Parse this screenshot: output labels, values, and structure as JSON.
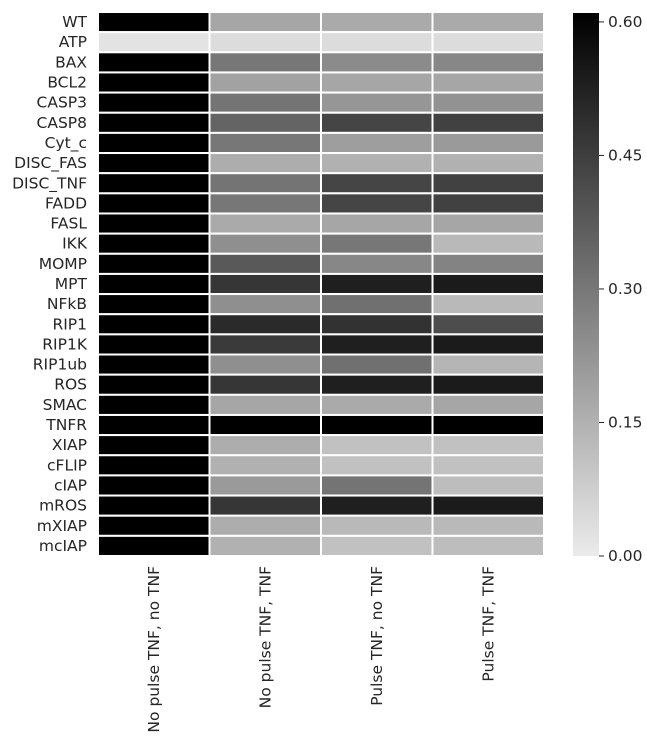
{
  "chart_data": {
    "type": "heatmap",
    "title": "",
    "xlabel": "",
    "ylabel": "",
    "columns": [
      "No pulse TNF, no TNF",
      "No pulse TNF, TNF",
      "Pulse TNF, no TNF",
      "Pulse TNF, TNF"
    ],
    "rows": [
      "WT",
      "ATP",
      "BAX",
      "BCL2",
      "CASP3",
      "CASP8",
      "Cyt_c",
      "DISC_FAS",
      "DISC_TNF",
      "FADD",
      "FASL",
      "IKK",
      "MOMP",
      "MPT",
      "NFkB",
      "RIP1",
      "RIP1K",
      "RIP1ub",
      "ROS",
      "SMAC",
      "TNFR",
      "XIAP",
      "cFLIP",
      "cIAP",
      "mROS",
      "mXIAP",
      "mcIAP"
    ],
    "values": [
      [
        0.61,
        0.18,
        0.17,
        0.17
      ],
      [
        0.02,
        0.04,
        0.04,
        0.04
      ],
      [
        0.61,
        0.3,
        0.25,
        0.26
      ],
      [
        0.61,
        0.19,
        0.18,
        0.18
      ],
      [
        0.61,
        0.31,
        0.22,
        0.23
      ],
      [
        0.61,
        0.35,
        0.43,
        0.44
      ],
      [
        0.61,
        0.3,
        0.2,
        0.21
      ],
      [
        0.61,
        0.16,
        0.15,
        0.15
      ],
      [
        0.61,
        0.31,
        0.43,
        0.44
      ],
      [
        0.61,
        0.3,
        0.43,
        0.44
      ],
      [
        0.61,
        0.17,
        0.18,
        0.18
      ],
      [
        0.61,
        0.24,
        0.3,
        0.13
      ],
      [
        0.61,
        0.38,
        0.26,
        0.27
      ],
      [
        0.61,
        0.47,
        0.53,
        0.54
      ],
      [
        0.61,
        0.24,
        0.32,
        0.13
      ],
      [
        0.61,
        0.5,
        0.48,
        0.41
      ],
      [
        0.61,
        0.46,
        0.53,
        0.54
      ],
      [
        0.61,
        0.24,
        0.32,
        0.14
      ],
      [
        0.61,
        0.47,
        0.53,
        0.54
      ],
      [
        0.61,
        0.18,
        0.17,
        0.18
      ],
      [
        0.61,
        0.61,
        0.61,
        0.61
      ],
      [
        0.61,
        0.16,
        0.11,
        0.11
      ],
      [
        0.61,
        0.15,
        0.11,
        0.11
      ],
      [
        0.61,
        0.21,
        0.31,
        0.12
      ],
      [
        0.61,
        0.47,
        0.53,
        0.54
      ],
      [
        0.61,
        0.16,
        0.13,
        0.13
      ],
      [
        0.61,
        0.15,
        0.11,
        0.12
      ]
    ],
    "colorbar": {
      "min": 0.0,
      "max": 0.61,
      "ticks": [
        0.0,
        0.15,
        0.3,
        0.45,
        0.6
      ],
      "tick_labels": [
        "0.00",
        "0.15",
        "0.30",
        "0.45",
        "0.60"
      ],
      "colormap": "white-to-black"
    },
    "cell_border_color": "#ffffff",
    "grid": false
  }
}
